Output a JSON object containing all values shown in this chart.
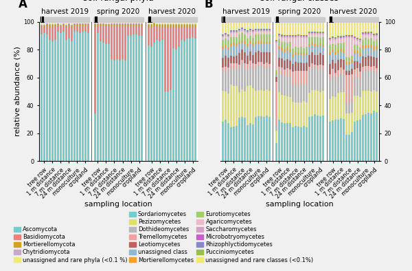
{
  "phyla_colors": {
    "Ascomycota": "#72cece",
    "Basidiomycota": "#f08080",
    "Mortierellomycota": "#d4a020",
    "Chytridiomycota": "#c8a8c8",
    "unassigned and rare phyla (<0.1 %)": "#f0e87a"
  },
  "classes_colors": {
    "Sordariomycetes": "#72cece",
    "Pezizomycetes": "#e0e068",
    "Dothideomycetes": "#b8b8b8",
    "Tremellomycetes": "#f4a0a0",
    "Leotiomycetes": "#c06060",
    "unassigned class": "#90b8d0",
    "Mortierellomycetes": "#f4a030",
    "Eurotiomycetes": "#a0d060",
    "Agaricomycetes": "#f0b8c8",
    "Saccharomycetes": "#d8a0c8",
    "Microbotryomycetes": "#c860c8",
    "Rhizophlyctidomycetes": "#8888c8",
    "Pucciniomycetes": "#98c048",
    "unassigned and rare classes (<0.1%)": "#f0e870"
  },
  "locations": [
    "tree row",
    "1 m distance",
    "7 m distance",
    "24 m distance",
    "monoculture",
    "cropland"
  ],
  "time_periods": [
    "harvest 2019",
    "spring 2020",
    "harvest 2020"
  ],
  "n_reps": 3,
  "n_locs": 6,
  "n_periods": 3,
  "phyla_order": [
    "Ascomycota",
    "Basidiomycota",
    "Mortierellomycota",
    "Chytridiomycota",
    "unassigned and rare phyla (<0.1 %)"
  ],
  "classes_order": [
    "Sordariomycetes",
    "Pezizomycetes",
    "Dothideomycetes",
    "Tremellomycetes",
    "Leotiomycetes",
    "unassigned class",
    "Mortierellomycetes",
    "Eurotiomycetes",
    "Agaricomycetes",
    "Saccharomycetes",
    "Microbotryomycetes",
    "Rhizophlyctidomycetes",
    "Pucciniomycetes",
    "unassigned and rare classes (<0.1%)"
  ],
  "phyla_data": {
    "Ascomycota": [
      91,
      92,
      91,
      87,
      86,
      87,
      93,
      92,
      93,
      87,
      88,
      87,
      93,
      93,
      92,
      93,
      93,
      92,
      34,
      92,
      86,
      85,
      84,
      84,
      73,
      72,
      73,
      72,
      73,
      72,
      90,
      90,
      91,
      91,
      90,
      90,
      83,
      82,
      84,
      87,
      86,
      87,
      50,
      50,
      51,
      81,
      80,
      82,
      87,
      86,
      88,
      88,
      89,
      88
    ],
    "Basidiomycota": [
      5,
      4,
      6,
      9,
      10,
      9,
      4,
      4,
      4,
      9,
      9,
      10,
      4,
      4,
      5,
      4,
      4,
      5,
      62,
      5,
      11,
      12,
      13,
      13,
      24,
      25,
      24,
      25,
      24,
      25,
      7,
      7,
      6,
      6,
      7,
      7,
      13,
      14,
      12,
      9,
      10,
      9,
      46,
      46,
      45,
      15,
      16,
      14,
      9,
      10,
      8,
      8,
      7,
      8
    ],
    "Mortierellomycota": [
      1.5,
      1.5,
      1.5,
      2,
      2,
      2,
      1.5,
      1.5,
      1.5,
      1.5,
      1.5,
      1.5,
      1.5,
      1.5,
      1.5,
      1.5,
      1.5,
      1.5,
      1.5,
      1.5,
      1.5,
      1.5,
      1.5,
      1.5,
      1.5,
      1.5,
      1.5,
      1.5,
      1.5,
      1.5,
      1.5,
      1.5,
      1.5,
      1.5,
      1.5,
      1.5,
      2,
      2,
      2,
      2,
      2,
      2,
      2,
      2,
      2,
      2,
      2,
      2,
      2,
      2,
      2,
      2,
      2,
      2
    ],
    "Chytridiomycota": [
      0.3,
      0.3,
      0.3,
      0.3,
      0.3,
      0.3,
      0.3,
      0.3,
      0.3,
      0.3,
      0.3,
      0.3,
      0.3,
      0.3,
      0.3,
      0.3,
      0.3,
      0.3,
      0.3,
      0.3,
      0.3,
      0.3,
      0.3,
      0.3,
      0.3,
      0.3,
      0.3,
      0.3,
      0.3,
      0.3,
      0.3,
      0.3,
      0.3,
      0.3,
      0.3,
      0.3,
      0.3,
      0.3,
      0.3,
      0.3,
      0.3,
      0.3,
      0.3,
      0.3,
      0.3,
      0.3,
      0.3,
      0.3,
      0.3,
      0.3,
      0.3,
      0.3,
      0.3,
      0.3
    ],
    "unassigned and rare phyla (<0.1 %)": [
      2.2,
      2.2,
      1.2,
      1.7,
      1.7,
      1.7,
      1.2,
      2.2,
      1.2,
      2.2,
      1.2,
      2.2,
      1.2,
      1.2,
      1.2,
      1.2,
      1.2,
      1.2,
      1.2,
      1.2,
      1.2,
      1.2,
      1.5,
      1.5,
      1.2,
      1.2,
      1.2,
      1.2,
      1.2,
      1.2,
      1.2,
      1.2,
      1.2,
      1.2,
      1.2,
      1.2,
      1.7,
      1.7,
      0.7,
      1.7,
      1.7,
      1.7,
      1.7,
      1.7,
      1.7,
      1.7,
      1.7,
      1.7,
      1.7,
      1.7,
      1.7,
      1.7,
      1.7,
      1.7
    ]
  },
  "classes_data": {
    "Sordariomycetes": [
      28,
      30,
      27,
      24,
      25,
      25,
      30,
      31,
      31,
      26,
      27,
      27,
      31,
      32,
      32,
      31,
      32,
      31,
      12,
      28,
      27,
      26,
      26,
      26,
      23,
      24,
      24,
      23,
      24,
      23,
      31,
      32,
      33,
      32,
      31,
      32,
      27,
      28,
      29,
      29,
      30,
      30,
      18,
      18,
      20,
      27,
      28,
      29,
      31,
      32,
      33,
      33,
      34,
      34
    ],
    "Pezizomycetes": [
      22,
      20,
      21,
      30,
      29,
      28,
      18,
      19,
      18,
      28,
      27,
      27,
      18,
      18,
      18,
      18,
      18,
      18,
      8,
      19,
      19,
      19,
      18,
      18,
      17,
      16,
      17,
      17,
      17,
      17,
      17,
      18,
      17,
      17,
      17,
      17,
      16,
      16,
      16,
      19,
      18,
      19,
      14,
      14,
      13,
      18,
      17,
      16,
      16,
      16,
      15,
      15,
      14,
      14
    ],
    "Dothideomycetes": [
      14,
      15,
      15,
      11,
      12,
      12,
      17,
      18,
      17,
      12,
      13,
      13,
      16,
      17,
      17,
      16,
      16,
      16,
      4,
      14,
      14,
      13,
      14,
      14,
      11,
      12,
      12,
      12,
      11,
      12,
      15,
      16,
      16,
      15,
      16,
      15,
      13,
      14,
      13,
      12,
      13,
      12,
      7,
      7,
      8,
      12,
      13,
      13,
      13,
      13,
      14,
      14,
      13,
      13
    ],
    "Tremellomycetes": [
      3,
      3,
      3,
      4,
      4,
      4,
      2,
      3,
      3,
      4,
      5,
      5,
      3,
      3,
      3,
      3,
      3,
      3,
      28,
      3,
      5,
      5,
      5,
      5,
      9,
      10,
      10,
      9,
      10,
      9,
      3,
      3,
      2,
      3,
      3,
      3,
      4,
      5,
      4,
      4,
      4,
      4,
      19,
      19,
      18,
      6,
      6,
      5,
      3,
      4,
      3,
      3,
      3,
      3
    ],
    "Leotiomycetes": [
      7,
      8,
      7,
      5,
      5,
      5,
      8,
      7,
      8,
      6,
      6,
      6,
      8,
      8,
      7,
      8,
      7,
      8,
      3,
      6,
      6,
      6,
      6,
      6,
      5,
      6,
      6,
      6,
      5,
      6,
      8,
      8,
      7,
      7,
      8,
      7,
      7,
      6,
      7,
      7,
      6,
      7,
      3,
      3,
      4,
      6,
      5,
      6,
      7,
      6,
      7,
      7,
      6,
      7
    ],
    "unassigned class": [
      6,
      6,
      6,
      7,
      8,
      7,
      6,
      5,
      6,
      7,
      6,
      7,
      6,
      5,
      6,
      6,
      6,
      6,
      2,
      6,
      6,
      6,
      6,
      6,
      5,
      5,
      5,
      5,
      5,
      5,
      6,
      5,
      6,
      6,
      5,
      6,
      6,
      5,
      6,
      5,
      5,
      5,
      4,
      4,
      4,
      5,
      5,
      5,
      5,
      6,
      5,
      6,
      5,
      6
    ],
    "Mortierellomycetes": [
      1.5,
      1.5,
      1.5,
      2,
      2,
      2,
      1.5,
      1.5,
      1.5,
      1.5,
      1.5,
      1.5,
      1.5,
      1.5,
      1.5,
      1.5,
      1.5,
      1.5,
      0.8,
      1.5,
      1.5,
      1.5,
      1.5,
      1.5,
      1.5,
      1.5,
      1.5,
      1.5,
      1.5,
      1.5,
      1.5,
      1.5,
      1.5,
      1.5,
      1.5,
      1.5,
      2,
      2,
      2,
      2,
      2,
      2,
      2,
      2,
      2,
      2,
      2,
      2,
      2,
      2,
      2,
      2,
      2,
      2
    ],
    "Eurotiomycetes": [
      5,
      5,
      5,
      4,
      4,
      4,
      5,
      5,
      5,
      4,
      4,
      4,
      5,
      5,
      5,
      5,
      5,
      5,
      2,
      5,
      4,
      5,
      4,
      5,
      4,
      4,
      4,
      4,
      4,
      4,
      5,
      4,
      5,
      5,
      4,
      5,
      5,
      4,
      5,
      5,
      4,
      5,
      3,
      3,
      3,
      4,
      4,
      4,
      4,
      5,
      4,
      5,
      4,
      5
    ],
    "Agaricomycetes": [
      2,
      2,
      2,
      3,
      3,
      3,
      2,
      2,
      2,
      4,
      3,
      4,
      2,
      2,
      2,
      2,
      2,
      2,
      18,
      2,
      3,
      3,
      3,
      3,
      7,
      6,
      7,
      6,
      7,
      6,
      2,
      2,
      2,
      2,
      2,
      2,
      3,
      3,
      3,
      3,
      3,
      3,
      13,
      13,
      12,
      4,
      3,
      4,
      3,
      2,
      3,
      2,
      3,
      2
    ],
    "Saccharomycetes": [
      1,
      1,
      1,
      1,
      1,
      1,
      1,
      1,
      1,
      1,
      1,
      1,
      1,
      1,
      1,
      1,
      1,
      1,
      0.5,
      1,
      1,
      1,
      1,
      1,
      1,
      1,
      1,
      1,
      1,
      1,
      1,
      1,
      1,
      1,
      1,
      1,
      1,
      1,
      1,
      1,
      1,
      1,
      1,
      1,
      1,
      1,
      1,
      1,
      1,
      1,
      1,
      1,
      1,
      1
    ],
    "Microbotryomycetes": [
      0.5,
      0.5,
      0.5,
      0.5,
      0.5,
      0.5,
      0.5,
      0.5,
      0.5,
      0.5,
      0.5,
      0.5,
      0.5,
      0.5,
      0.5,
      0.5,
      0.5,
      0.5,
      0.5,
      0.5,
      0.5,
      0.5,
      0.5,
      0.5,
      0.5,
      0.5,
      0.5,
      0.5,
      0.5,
      0.5,
      0.5,
      0.5,
      0.5,
      0.5,
      0.5,
      0.5,
      0.5,
      0.5,
      0.5,
      0.5,
      0.5,
      0.5,
      0.5,
      0.5,
      0.5,
      0.5,
      0.5,
      0.5,
      0.5,
      0.5,
      0.5,
      0.5,
      0.5,
      0.5
    ],
    "Rhizophlyctidomycetes": [
      0.3,
      0.3,
      0.3,
      0.3,
      0.3,
      0.3,
      0.3,
      0.3,
      0.3,
      0.3,
      0.3,
      0.3,
      0.3,
      0.3,
      0.3,
      0.3,
      0.3,
      0.3,
      0.3,
      0.3,
      0.3,
      0.3,
      0.3,
      0.3,
      0.3,
      0.3,
      0.3,
      0.3,
      0.3,
      0.3,
      0.3,
      0.3,
      0.3,
      0.3,
      0.3,
      0.3,
      0.3,
      0.3,
      0.3,
      0.3,
      0.3,
      0.3,
      0.3,
      0.3,
      0.3,
      0.3,
      0.3,
      0.3,
      0.3,
      0.3,
      0.3,
      0.3,
      0.3,
      0.3
    ],
    "Pucciniomycetes": [
      0.2,
      0.2,
      0.2,
      0.2,
      0.2,
      0.2,
      0.2,
      0.2,
      0.2,
      0.2,
      0.2,
      0.2,
      0.2,
      0.2,
      0.2,
      0.2,
      0.2,
      0.2,
      0.2,
      0.2,
      0.2,
      0.2,
      0.2,
      0.2,
      0.2,
      0.2,
      0.2,
      0.2,
      0.2,
      0.2,
      0.2,
      0.2,
      0.2,
      0.2,
      0.2,
      0.2,
      0.2,
      0.2,
      0.2,
      0.2,
      0.2,
      0.2,
      0.2,
      0.2,
      0.2,
      0.2,
      0.2,
      0.2,
      0.2,
      0.2,
      0.2,
      0.2,
      0.2,
      0.2
    ],
    "unassigned and rare classes (<0.1%)": [
      9,
      8,
      9,
      6,
      6,
      6,
      5,
      4,
      5,
      6,
      5,
      6,
      5,
      5,
      5,
      5,
      5,
      5,
      12,
      8,
      9,
      9,
      9,
      9,
      9,
      9,
      9,
      9,
      9,
      9,
      7,
      7,
      7,
      7,
      7,
      7,
      11,
      10,
      11,
      10,
      10,
      10,
      9,
      9,
      9,
      10,
      11,
      12,
      7,
      7,
      7,
      7,
      8,
      8
    ]
  },
  "background_color": "#f0f0f0",
  "plot_bg_color": "#ffffff",
  "title_fontsize": 9,
  "axis_label_fontsize": 8,
  "tick_fontsize": 6,
  "legend_fontsize": 6,
  "period_label_fontsize": 7.5,
  "panel_label_fontsize": 12
}
